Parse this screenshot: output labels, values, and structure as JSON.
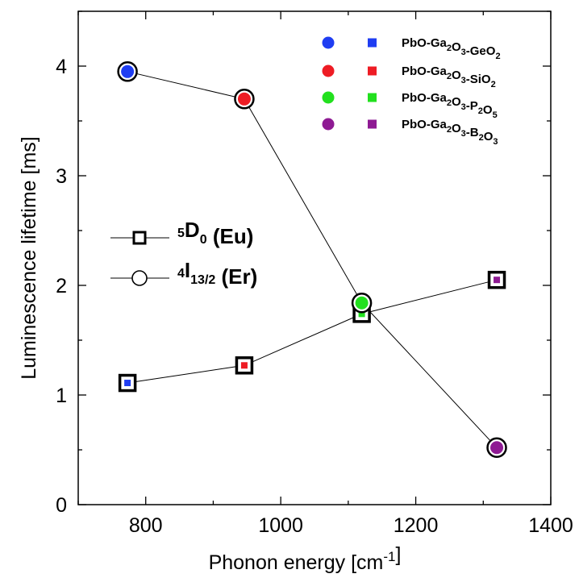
{
  "chart_data": {
    "type": "scatter",
    "xlabel": {
      "text": "Phonon energy [cm",
      "sup": "-1",
      "suffix": "]"
    },
    "ylabel": "Luminescence lifetime [ms]",
    "xlim": [
      700,
      1400
    ],
    "ylim": [
      0,
      4.5
    ],
    "xticks": [
      800,
      1000,
      1200,
      1400
    ],
    "yticks": [
      0,
      1,
      2,
      3,
      4
    ],
    "grid": false,
    "series": [
      {
        "name": "5D0 (Eu)",
        "name_parts": [
          {
            "t": "5",
            "s": "sup"
          },
          {
            "t": "D",
            "s": "normal"
          },
          {
            "t": "0",
            "s": "sub"
          },
          {
            "t": " (Eu)",
            "s": "normal"
          }
        ],
        "marker": "square",
        "x": [
          773,
          946,
          1120,
          1320
        ],
        "y": [
          1.11,
          1.27,
          1.74,
          2.05
        ]
      },
      {
        "name": "4I13/2 (Er)",
        "name_parts": [
          {
            "t": "4",
            "s": "sup"
          },
          {
            "t": "I",
            "s": "normal"
          },
          {
            "t": "13/2",
            "s": "sub"
          },
          {
            "t": " (Er)",
            "s": "normal"
          }
        ],
        "marker": "circle",
        "x": [
          773,
          946,
          1120,
          1320
        ],
        "y": [
          3.95,
          3.7,
          1.84,
          0.52
        ]
      }
    ],
    "glass_legend": {
      "placement": "top-right",
      "entries": [
        {
          "color": "#1f3df2",
          "label_parts": [
            {
              "t": "PbO-Ga",
              "s": "normal"
            },
            {
              "t": "2",
              "s": "sub"
            },
            {
              "t": "O",
              "s": "normal"
            },
            {
              "t": "3",
              "s": "sub"
            },
            {
              "t": "-GeO",
              "s": "normal"
            },
            {
              "t": "2",
              "s": "sub"
            }
          ]
        },
        {
          "color": "#ee1c24",
          "label_parts": [
            {
              "t": "PbO-Ga",
              "s": "normal"
            },
            {
              "t": "2",
              "s": "sub"
            },
            {
              "t": "O",
              "s": "normal"
            },
            {
              "t": "3",
              "s": "sub"
            },
            {
              "t": "-SiO",
              "s": "normal"
            },
            {
              "t": "2",
              "s": "sub"
            }
          ]
        },
        {
          "color": "#22e01e",
          "label_parts": [
            {
              "t": "PbO-Ga",
              "s": "normal"
            },
            {
              "t": "2",
              "s": "sub"
            },
            {
              "t": "O",
              "s": "normal"
            },
            {
              "t": "3",
              "s": "sub"
            },
            {
              "t": "-P",
              "s": "normal"
            },
            {
              "t": "2",
              "s": "sub"
            },
            {
              "t": "O",
              "s": "normal"
            },
            {
              "t": "5",
              "s": "sub"
            }
          ]
        },
        {
          "color": "#8e1a93",
          "label_parts": [
            {
              "t": "PbO-Ga",
              "s": "normal"
            },
            {
              "t": "2",
              "s": "sub"
            },
            {
              "t": "O",
              "s": "normal"
            },
            {
              "t": "3",
              "s": "sub"
            },
            {
              "t": "-B",
              "s": "normal"
            },
            {
              "t": "2",
              "s": "sub"
            },
            {
              "t": "O",
              "s": "normal"
            },
            {
              "t": "3",
              "s": "sub"
            }
          ]
        }
      ]
    },
    "series_legend_placement": "center-left"
  }
}
